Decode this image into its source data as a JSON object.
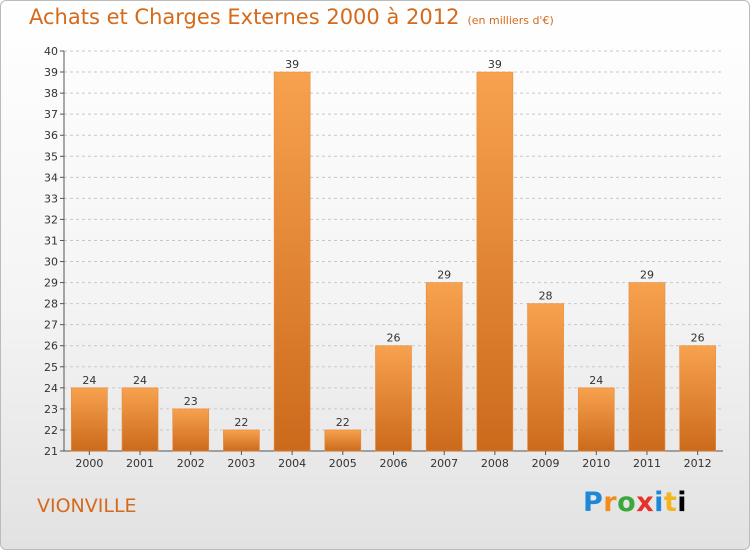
{
  "header": {
    "title": "Achats et Charges Externes 2000 à 2012",
    "unit": "(en milliers d'€)"
  },
  "footer": {
    "city": "VIONVILLE",
    "logo_letters": [
      "P",
      "r",
      "o",
      "x",
      "i",
      "t",
      "i"
    ]
  },
  "colors": {
    "title": "#d46a1a",
    "bar_light": "#f7a24e",
    "bar_dark": "#cc6a1c",
    "grid": "#c8c8c8"
  },
  "chart_data": {
    "type": "bar",
    "title": "Achats et Charges Externes 2000 à 2012",
    "subtitle": "(en milliers d'€)",
    "categories": [
      "2000",
      "2001",
      "2002",
      "2003",
      "2004",
      "2005",
      "2006",
      "2007",
      "2008",
      "2009",
      "2010",
      "2011",
      "2012"
    ],
    "values": [
      24,
      24,
      23,
      22,
      39,
      22,
      26,
      29,
      39,
      28,
      24,
      29,
      26
    ],
    "ylim": [
      21,
      40
    ],
    "yticks": [
      21,
      22,
      23,
      24,
      25,
      26,
      27,
      28,
      29,
      30,
      31,
      32,
      33,
      34,
      35,
      36,
      37,
      38,
      39,
      40
    ],
    "grid": "horizontal dashed",
    "legend": "none"
  }
}
